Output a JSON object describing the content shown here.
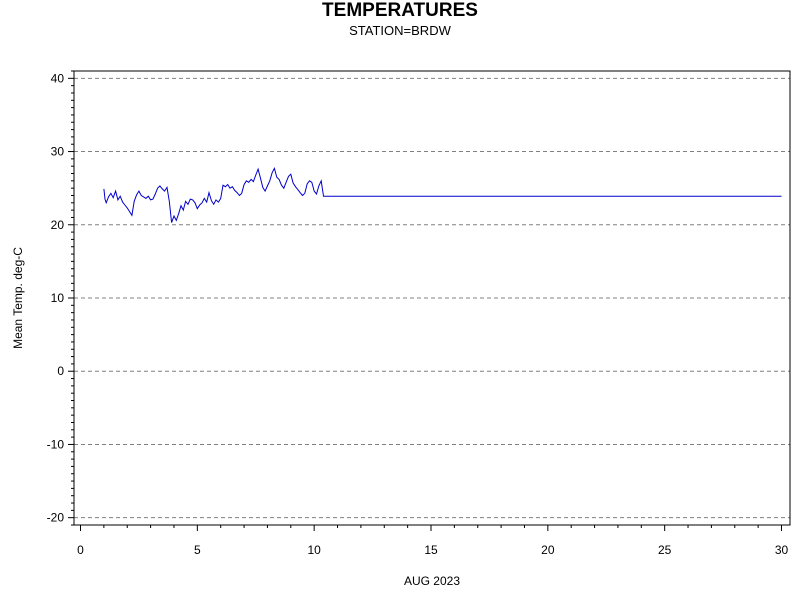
{
  "chart_data": {
    "type": "line",
    "title": "TEMPERATURES",
    "subtitle": "STATION=BRDW",
    "xlabel": "AUG 2023",
    "ylabel": "Mean Temp. deg-C",
    "xlim": [
      0,
      30
    ],
    "ylim": [
      -21,
      41
    ],
    "x_ticks": [
      0,
      5,
      10,
      15,
      20,
      25,
      30
    ],
    "y_ticks": [
      -20,
      -10,
      0,
      10,
      20,
      30,
      40
    ],
    "grid": "horizontal dashed",
    "line_color": "#0000cc",
    "series": [
      {
        "x": [
          1.0,
          1.05,
          1.1,
          1.2,
          1.3,
          1.4,
          1.5,
          1.6,
          1.7,
          1.8,
          1.9,
          2.0,
          2.1,
          2.2,
          2.3,
          2.4,
          2.5,
          2.6,
          2.7,
          2.8,
          2.9,
          3.0,
          3.1,
          3.2,
          3.3,
          3.4,
          3.5,
          3.6,
          3.7,
          3.8,
          3.9,
          4.0,
          4.1,
          4.2,
          4.3,
          4.4,
          4.5,
          4.6,
          4.7,
          4.8,
          4.9,
          5.0,
          5.1,
          5.2,
          5.3,
          5.4,
          5.5,
          5.6,
          5.7,
          5.8,
          5.9,
          6.0,
          6.1,
          6.2,
          6.3,
          6.4,
          6.5,
          6.6,
          6.7,
          6.8,
          6.9,
          7.0,
          7.1,
          7.2,
          7.3,
          7.4,
          7.5,
          7.6,
          7.7,
          7.8,
          7.9,
          8.0,
          8.1,
          8.2,
          8.3,
          8.4,
          8.5,
          8.6,
          8.7,
          8.8,
          8.9,
          9.0,
          9.1,
          9.2,
          9.3,
          9.4,
          9.5,
          9.6,
          9.7,
          9.8,
          9.9,
          10.0,
          10.1,
          10.2,
          10.3,
          10.4,
          10.5,
          10.55,
          10.6,
          11.0,
          12.0,
          14.0,
          16.0,
          18.0,
          20.0,
          22.0,
          24.0,
          26.0,
          28.0,
          30.0
        ],
        "y": [
          24.9,
          23.5,
          23.0,
          23.8,
          24.3,
          23.7,
          24.6,
          23.4,
          23.9,
          23.1,
          22.7,
          22.3,
          21.8,
          21.3,
          23.2,
          24.1,
          24.6,
          24.0,
          23.8,
          23.6,
          23.9,
          23.4,
          23.5,
          24.2,
          25.0,
          25.3,
          24.9,
          24.6,
          25.1,
          23.2,
          20.3,
          21.2,
          20.6,
          21.5,
          22.6,
          22.0,
          23.2,
          22.8,
          23.5,
          23.4,
          23.0,
          22.2,
          22.7,
          23.0,
          23.6,
          23.1,
          24.4,
          23.3,
          22.8,
          23.4,
          23.1,
          23.6,
          25.4,
          25.2,
          25.5,
          25.0,
          25.2,
          24.7,
          24.4,
          24.0,
          24.3,
          25.5,
          26.0,
          25.8,
          26.2,
          25.9,
          26.8,
          27.6,
          26.4,
          25.1,
          24.6,
          25.3,
          26.0,
          27.1,
          27.7,
          26.5,
          26.2,
          25.4,
          25.0,
          25.8,
          26.6,
          26.9,
          25.7,
          25.2,
          24.8,
          24.4,
          24.0,
          24.3,
          25.6,
          26.0,
          25.8,
          24.6,
          24.2,
          25.3,
          26.0,
          23.9,
          23.9,
          23.9,
          23.9,
          23.9,
          23.9,
          23.9,
          23.9,
          23.9,
          23.9,
          23.9,
          23.9,
          23.9,
          23.9,
          23.9
        ]
      }
    ]
  }
}
